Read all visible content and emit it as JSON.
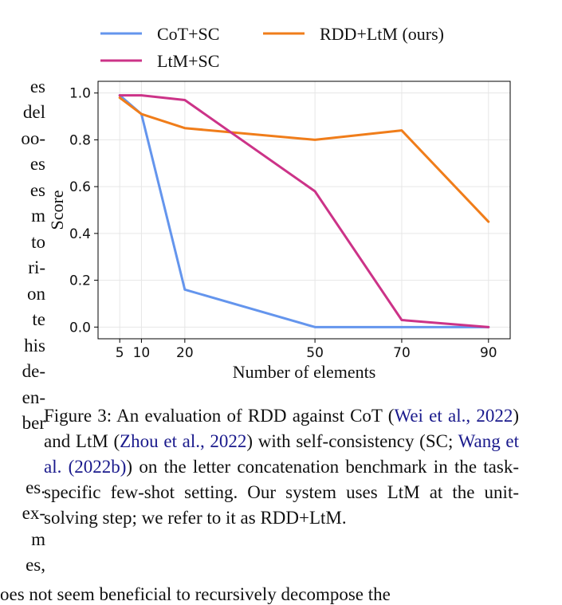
{
  "left_text_fragments": [
    "es",
    "del",
    "oo-",
    "es",
    "es",
    "m",
    "to",
    "ri-",
    "on",
    "te",
    "his",
    "de-",
    "en-",
    "ber",
    "es.",
    "ex-",
    "m",
    "es,"
  ],
  "bottom_text": "oes not seem beneficial to recursively decompose the",
  "chart_data": {
    "type": "line",
    "xlabel": "Number of elements",
    "ylabel": "Score",
    "x": [
      5,
      10,
      20,
      50,
      70,
      90
    ],
    "xticks": [
      "5",
      "10",
      "20",
      "50",
      "70",
      "90"
    ],
    "yticks": [
      "0.0",
      "0.2",
      "0.4",
      "0.6",
      "0.8",
      "1.0"
    ],
    "xlim": [
      0,
      95
    ],
    "ylim": [
      -0.05,
      1.05
    ],
    "grid": true,
    "legend_position": "top",
    "series": [
      {
        "name": "CoT+SC",
        "color": "#6495ED",
        "values": [
          0.99,
          0.91,
          0.16,
          0.0,
          0.0,
          0.0
        ]
      },
      {
        "name": "RDD+LtM (ours)",
        "color": "#F07D1A",
        "values": [
          0.98,
          0.91,
          0.85,
          0.8,
          0.84,
          0.45
        ]
      },
      {
        "name": "LtM+SC",
        "color": "#CC3388",
        "values": [
          0.99,
          0.99,
          0.97,
          0.58,
          0.03,
          0.0
        ]
      }
    ]
  },
  "caption": {
    "part1": "Figure 3: An evaluation of RDD against CoT (",
    "cite1": "Wei et al., 2022",
    "part2": ") and LtM (",
    "cite2": "Zhou et al., 2022",
    "part3": ") with self-consistency (SC; ",
    "cite3": "Wang et al. (2022b)",
    "part4": ") on the letter concatenation benchmark in the task-specific few-shot setting. Our system uses LtM at the unit-solving step; we refer to it as RDD+LtM."
  }
}
